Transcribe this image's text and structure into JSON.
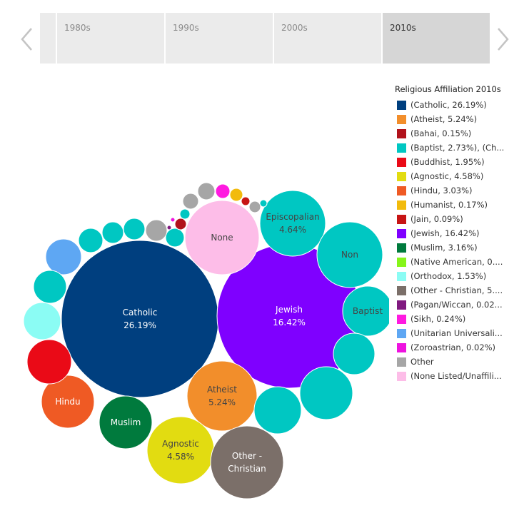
{
  "timeline": {
    "decades": [
      "1980s",
      "1990s",
      "2000s",
      "2010s"
    ],
    "active": "2010s"
  },
  "chart_data": {
    "type": "bubble",
    "title": "Religious Affiliation 2010s",
    "legend": [
      {
        "label": "(Catholic, 26.19%)",
        "color": "#003f7f"
      },
      {
        "label": "(Atheist, 5.24%)",
        "color": "#f28e2b"
      },
      {
        "label": "(Bahai, 0.15%)",
        "color": "#b1121b"
      },
      {
        "label": "(Baptist, 2.73%), (Ch...",
        "color": "#00c7c2"
      },
      {
        "label": "(Buddhist, 1.95%)",
        "color": "#ea0a17"
      },
      {
        "label": "(Agnostic, 4.58%)",
        "color": "#e2dc11"
      },
      {
        "label": "(Hindu, 3.03%)",
        "color": "#ef5a24"
      },
      {
        "label": "(Humanist, 0.17%)",
        "color": "#f2bb0c"
      },
      {
        "label": "(Jain, 0.09%)",
        "color": "#c71414"
      },
      {
        "label": "(Jewish, 16.42%)",
        "color": "#7f00ff"
      },
      {
        "label": "(Muslim, 3.16%)",
        "color": "#007a3d"
      },
      {
        "label": "(Native American, 0....",
        "color": "#86f51a"
      },
      {
        "label": "(Orthodox, 1.53%)",
        "color": "#8bfcf4"
      },
      {
        "label": "(Other - Christian, 5....",
        "color": "#7b6f69"
      },
      {
        "label": "(Pagan/Wiccan, 0.02...",
        "color": "#80197f"
      },
      {
        "label": "(Sikh, 0.24%)",
        "color": "#ff1ae0"
      },
      {
        "label": "(Unitarian Universali...",
        "color": "#5ea7f3"
      },
      {
        "label": "(Zoroastrian, 0.02%)",
        "color": "#ee12df"
      },
      {
        "label": "Other",
        "color": "#a6a6a6"
      },
      {
        "label": "(None Listed/Unaffili...",
        "color": "#fdbde8"
      }
    ],
    "bubbles": [
      {
        "name": "Catholic",
        "line1": "Catholic",
        "line2": "26.19%",
        "value": 26.19,
        "color": "#003f7f",
        "text_color": "#ffffff"
      },
      {
        "name": "Jewish",
        "line1": "Jewish",
        "line2": "16.42%",
        "value": 16.42,
        "color": "#7f00ff",
        "text_color": "#ffffff"
      },
      {
        "name": "None",
        "line1": "None",
        "line2": "",
        "color": "#fdbde8",
        "text_color": "#444444"
      },
      {
        "name": "Episcopalian",
        "line1": "Episcopalian",
        "line2": "4.64%",
        "value": 4.64,
        "color": "#00c7c2",
        "text_color": "#444444"
      },
      {
        "name": "Non",
        "line1": "Non",
        "line2": "",
        "color": "#00c7c2",
        "text_color": "#444444"
      },
      {
        "name": "Baptist",
        "line1": "Baptist",
        "line2": "",
        "color": "#00c7c2",
        "text_color": "#444444"
      },
      {
        "name": "Atheist",
        "line1": "Atheist",
        "line2": "5.24%",
        "value": 5.24,
        "color": "#f28e2b",
        "text_color": "#444444"
      },
      {
        "name": "Agnostic",
        "line1": "Agnostic",
        "line2": "4.58%",
        "value": 4.58,
        "color": "#e2dc11",
        "text_color": "#444444"
      },
      {
        "name": "Other - Christian",
        "line1": "Other -",
        "line2": "Christian",
        "color": "#7b6f69",
        "text_color": "#ffffff"
      },
      {
        "name": "Hindu",
        "line1": "Hindu",
        "line2": "",
        "color": "#ef5a24",
        "text_color": "#ffffff"
      },
      {
        "name": "Muslim",
        "line1": "Muslim",
        "line2": "",
        "color": "#007a3d",
        "text_color": "#ffffff"
      },
      {
        "name": "Buddhist",
        "line1": "",
        "line2": "",
        "color": "#ea0a17"
      },
      {
        "name": "Orthodox",
        "line1": "",
        "line2": "",
        "color": "#8bfcf4"
      },
      {
        "name": "Unitarian",
        "line1": "",
        "line2": "",
        "color": "#5ea7f3"
      },
      {
        "name": "Christian-1",
        "line1": "",
        "line2": "",
        "color": "#00c7c2"
      },
      {
        "name": "Christian-2",
        "line1": "",
        "line2": "",
        "color": "#00c7c2"
      },
      {
        "name": "Christian-3",
        "line1": "",
        "line2": "",
        "color": "#00c7c2"
      },
      {
        "name": "Christian-4",
        "line1": "",
        "line2": "",
        "color": "#00c7c2"
      },
      {
        "name": "Christian-5",
        "line1": "",
        "line2": "",
        "color": "#00c7c2"
      },
      {
        "name": "Christian-6",
        "line1": "",
        "line2": "",
        "color": "#00c7c2"
      },
      {
        "name": "Christian-7",
        "line1": "",
        "line2": "",
        "color": "#00c7c2"
      },
      {
        "name": "Christian-8",
        "line1": "",
        "line2": "",
        "color": "#00c7c2"
      },
      {
        "name": "Christian-9",
        "line1": "",
        "line2": "",
        "color": "#00c7c2"
      },
      {
        "name": "Christian-10",
        "line1": "",
        "line2": "",
        "color": "#00c7c2"
      },
      {
        "name": "Other-1",
        "line1": "",
        "line2": "",
        "color": "#a6a6a6"
      },
      {
        "name": "Other-2",
        "line1": "",
        "line2": "",
        "color": "#a6a6a6"
      },
      {
        "name": "Other-3",
        "line1": "",
        "line2": "",
        "color": "#a6a6a6"
      },
      {
        "name": "Other-4",
        "line1": "",
        "line2": "",
        "color": "#a6a6a6"
      },
      {
        "name": "Sikh",
        "line1": "",
        "line2": "",
        "color": "#ff1ae0"
      },
      {
        "name": "Humanist",
        "line1": "",
        "line2": "",
        "color": "#f2bb0c"
      },
      {
        "name": "Jain",
        "line1": "",
        "line2": "",
        "color": "#c71414"
      },
      {
        "name": "Native American",
        "line1": "",
        "line2": "",
        "color": "#86f51a"
      },
      {
        "name": "Bahai",
        "line1": "",
        "line2": "",
        "color": "#b1121b"
      },
      {
        "name": "Zoroastrian",
        "line1": "",
        "line2": "",
        "color": "#ee12df"
      },
      {
        "name": "Pagan/Wiccan",
        "line1": "",
        "line2": "",
        "color": "#80197f"
      }
    ]
  }
}
